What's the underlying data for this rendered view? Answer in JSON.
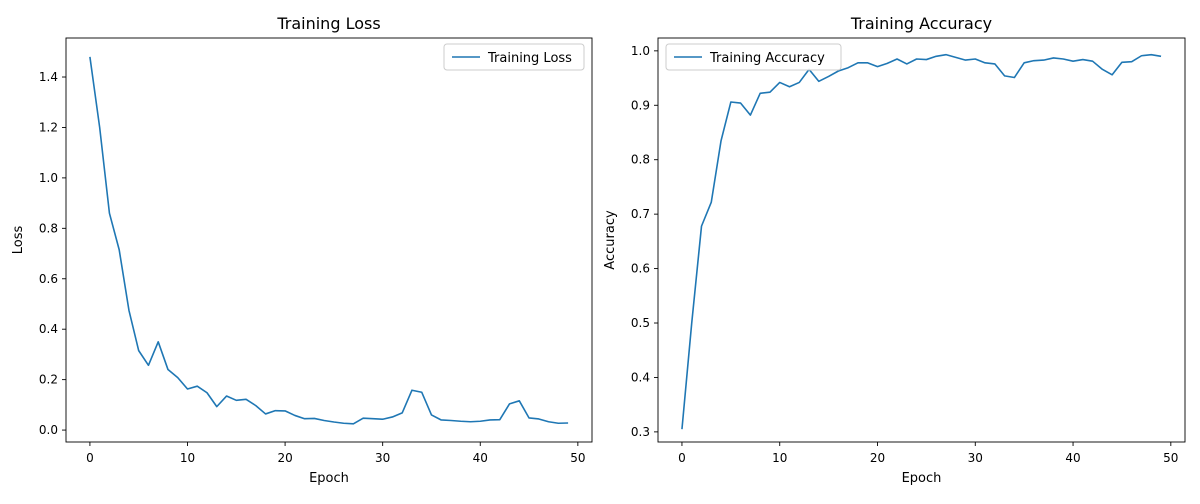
{
  "colors": {
    "line": "#1f77b4",
    "axes": "#000000",
    "legend_border": "#cccccc"
  },
  "chart_data": [
    {
      "type": "line",
      "title": "Training Loss",
      "xlabel": "Epoch",
      "ylabel": "Loss",
      "xlim": [
        -2.45,
        51.45
      ],
      "ylim": [
        -0.0473,
        1.5547
      ],
      "xticks": [
        0,
        10,
        20,
        30,
        40,
        50
      ],
      "xtick_labels": [
        "0",
        "10",
        "20",
        "30",
        "40",
        "50"
      ],
      "yticks": [
        0.0,
        0.2,
        0.4,
        0.6,
        0.8,
        1.0,
        1.2,
        1.4
      ],
      "ytick_labels": [
        "0.0",
        "0.2",
        "0.4",
        "0.6",
        "0.8",
        "1.0",
        "1.2",
        "1.4"
      ],
      "grid": false,
      "legend_position": "upper right",
      "series": [
        {
          "name": "Training Loss",
          "x": [
            0,
            1,
            2,
            3,
            4,
            5,
            6,
            7,
            8,
            9,
            10,
            11,
            12,
            13,
            14,
            15,
            16,
            17,
            18,
            19,
            20,
            21,
            22,
            23,
            24,
            25,
            26,
            27,
            28,
            29,
            30,
            31,
            32,
            33,
            34,
            35,
            36,
            37,
            38,
            39,
            40,
            41,
            42,
            43,
            44,
            45,
            46,
            47,
            48,
            49
          ],
          "values": [
            1.48,
            1.2,
            0.86,
            0.715,
            0.475,
            0.315,
            0.257,
            0.35,
            0.24,
            0.208,
            0.163,
            0.174,
            0.148,
            0.093,
            0.135,
            0.118,
            0.122,
            0.097,
            0.064,
            0.077,
            0.076,
            0.058,
            0.045,
            0.046,
            0.038,
            0.032,
            0.027,
            0.025,
            0.047,
            0.045,
            0.043,
            0.052,
            0.068,
            0.158,
            0.15,
            0.06,
            0.04,
            0.038,
            0.035,
            0.033,
            0.035,
            0.04,
            0.041,
            0.104,
            0.116,
            0.048,
            0.044,
            0.033,
            0.027,
            0.028
          ]
        }
      ]
    },
    {
      "type": "line",
      "title": "Training Accuracy",
      "xlabel": "Epoch",
      "ylabel": "Accuracy",
      "xlim": [
        -2.45,
        51.45
      ],
      "ylim": [
        0.2814,
        1.0236
      ],
      "xticks": [
        0,
        10,
        20,
        30,
        40,
        50
      ],
      "xtick_labels": [
        "0",
        "10",
        "20",
        "30",
        "40",
        "50"
      ],
      "yticks": [
        0.3,
        0.4,
        0.5,
        0.6,
        0.7,
        0.8,
        0.9,
        1.0
      ],
      "ytick_labels": [
        "0.3",
        "0.4",
        "0.5",
        "0.6",
        "0.7",
        "0.8",
        "0.9",
        "1.0"
      ],
      "grid": false,
      "legend_position": "upper left",
      "series": [
        {
          "name": "Training Accuracy",
          "x": [
            0,
            1,
            2,
            3,
            4,
            5,
            6,
            7,
            8,
            9,
            10,
            11,
            12,
            13,
            14,
            15,
            16,
            17,
            18,
            19,
            20,
            21,
            22,
            23,
            24,
            25,
            26,
            27,
            28,
            29,
            30,
            31,
            32,
            33,
            34,
            35,
            36,
            37,
            38,
            39,
            40,
            41,
            42,
            43,
            44,
            45,
            46,
            47,
            48,
            49
          ],
          "values": [
            0.305,
            0.5,
            0.678,
            0.722,
            0.835,
            0.906,
            0.904,
            0.882,
            0.922,
            0.924,
            0.942,
            0.934,
            0.942,
            0.966,
            0.944,
            0.953,
            0.963,
            0.969,
            0.978,
            0.978,
            0.971,
            0.977,
            0.985,
            0.976,
            0.985,
            0.984,
            0.99,
            0.993,
            0.988,
            0.983,
            0.985,
            0.978,
            0.976,
            0.954,
            0.951,
            0.978,
            0.982,
            0.983,
            0.987,
            0.985,
            0.981,
            0.984,
            0.981,
            0.966,
            0.956,
            0.979,
            0.98,
            0.991,
            0.993,
            0.99
          ]
        }
      ]
    }
  ]
}
